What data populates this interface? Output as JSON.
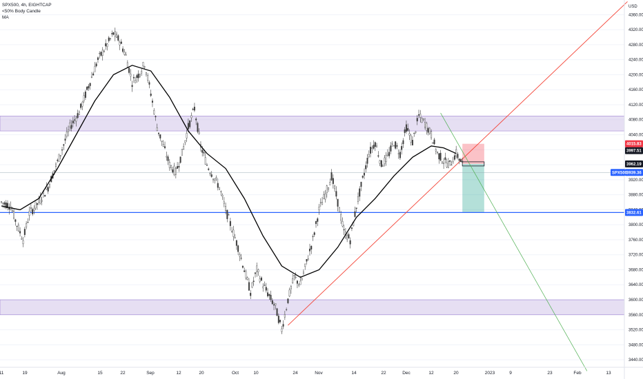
{
  "legend": {
    "symbol": "SPX500, 4h, EIGHTCAP",
    "indicator1": "&lt;50% Body Candle",
    "indicator2": "MA"
  },
  "currency": "USD",
  "chart_data": {
    "type": "candlestick",
    "symbol": "SPX500",
    "timeframe": "4h",
    "yaxis_ticks": [
      4360,
      4320,
      4280,
      4240,
      4200,
      4160,
      4120,
      4080,
      4040,
      4000,
      3960,
      3920,
      3880,
      3840,
      3800,
      3760,
      3720,
      3680,
      3640,
      3600,
      3560,
      3520,
      3480,
      3440
    ],
    "xaxis_ticks": [
      "11",
      "19",
      "Aug",
      "15",
      "22",
      "Sep",
      "12",
      "20",
      "Oct",
      "10",
      "24",
      "Nov",
      "14",
      "22",
      "Dec",
      "12",
      "20",
      "2023",
      "9",
      "23",
      "Feb",
      "13"
    ],
    "ylim": [
      3420,
      4390
    ],
    "price_path": [
      [
        0,
        3860
      ],
      [
        3,
        3850
      ],
      [
        5,
        3800
      ],
      [
        7,
        3760
      ],
      [
        9,
        3830
      ],
      [
        12,
        3860
      ],
      [
        15,
        3900
      ],
      [
        19,
        3990
      ],
      [
        22,
        4060
      ],
      [
        25,
        4100
      ],
      [
        28,
        4170
      ],
      [
        31,
        4240
      ],
      [
        34,
        4280
      ],
      [
        36,
        4310
      ],
      [
        38,
        4290
      ],
      [
        40,
        4250
      ],
      [
        42,
        4180
      ],
      [
        44,
        4200
      ],
      [
        46,
        4230
      ],
      [
        48,
        4150
      ],
      [
        50,
        4060
      ],
      [
        52,
        4010
      ],
      [
        54,
        3960
      ],
      [
        56,
        3940
      ],
      [
        58,
        3990
      ],
      [
        60,
        4060
      ],
      [
        62,
        4110
      ],
      [
        64,
        4010
      ],
      [
        66,
        3960
      ],
      [
        68,
        3930
      ],
      [
        70,
        3900
      ],
      [
        72,
        3840
      ],
      [
        74,
        3790
      ],
      [
        76,
        3740
      ],
      [
        78,
        3680
      ],
      [
        80,
        3620
      ],
      [
        82,
        3680
      ],
      [
        84,
        3640
      ],
      [
        86,
        3610
      ],
      [
        88,
        3580
      ],
      [
        90,
        3520
      ],
      [
        92,
        3600
      ],
      [
        94,
        3660
      ],
      [
        96,
        3640
      ],
      [
        98,
        3700
      ],
      [
        100,
        3760
      ],
      [
        102,
        3840
      ],
      [
        104,
        3880
      ],
      [
        106,
        3930
      ],
      [
        108,
        3860
      ],
      [
        110,
        3780
      ],
      [
        112,
        3760
      ],
      [
        114,
        3850
      ],
      [
        116,
        3920
      ],
      [
        118,
        3990
      ],
      [
        120,
        4020
      ],
      [
        122,
        3960
      ],
      [
        124,
        3980
      ],
      [
        126,
        4020
      ],
      [
        128,
        3990
      ],
      [
        130,
        4060
      ],
      [
        132,
        4020
      ],
      [
        134,
        4090
      ],
      [
        136,
        4070
      ],
      [
        138,
        4040
      ],
      [
        140,
        3990
      ],
      [
        142,
        3970
      ],
      [
        144,
        3960
      ],
      [
        146,
        3990
      ],
      [
        148,
        3962
      ]
    ],
    "moving_average": [
      [
        0,
        3850
      ],
      [
        6,
        3840
      ],
      [
        12,
        3870
      ],
      [
        18,
        3950
      ],
      [
        24,
        4040
      ],
      [
        30,
        4130
      ],
      [
        36,
        4200
      ],
      [
        42,
        4225
      ],
      [
        48,
        4210
      ],
      [
        54,
        4140
      ],
      [
        60,
        4050
      ],
      [
        66,
        3990
      ],
      [
        72,
        3950
      ],
      [
        78,
        3870
      ],
      [
        84,
        3770
      ],
      [
        90,
        3690
      ],
      [
        96,
        3660
      ],
      [
        102,
        3680
      ],
      [
        108,
        3740
      ],
      [
        114,
        3820
      ],
      [
        120,
        3870
      ],
      [
        126,
        3930
      ],
      [
        132,
        3980
      ],
      [
        138,
        4010
      ],
      [
        142,
        4005
      ],
      [
        146,
        3990
      ]
    ],
    "zones": [
      {
        "name": "resistance-zone",
        "from": 4050,
        "to": 4090,
        "color": "#d1c4e9"
      },
      {
        "name": "support-zone",
        "from": 3560,
        "to": 3600,
        "color": "#d1c4e9"
      }
    ],
    "lines": [
      {
        "name": "support-level-line",
        "price": 3832.61,
        "color": "#2962ff"
      },
      {
        "name": "current-price-line",
        "price": 3939.36,
        "color": "#90a4ae"
      }
    ],
    "trendline": {
      "from": [
        92,
        3532
      ],
      "to": [
        201,
        4395
      ],
      "color": "#f44336"
    },
    "projection": {
      "from": [
        141,
        4098
      ],
      "to": [
        188,
        3410
      ],
      "color": "#4caf50"
    },
    "position": {
      "entry": 3962.19,
      "stop": 4015.83,
      "target": 3832.61,
      "start_index": 148,
      "end_index": 155
    },
    "price_tags": [
      {
        "label": "4015.83",
        "price": 4015.83,
        "bg": "#f23645",
        "fg": "#ffffff"
      },
      {
        "label": "3997.51",
        "price": 3997.51,
        "bg": "#131722",
        "fg": "#ffffff"
      },
      {
        "label": "3962.19",
        "price": 3962.19,
        "bg": "#131722",
        "fg": "#ffffff"
      },
      {
        "label": "3939.36",
        "price": 3939.36,
        "bg": "#2962ff",
        "fg": "#ffffff",
        "name_label": "SPX500"
      },
      {
        "label": "3832.61",
        "price": 3832.61,
        "bg": "#2962ff",
        "fg": "#ffffff"
      }
    ]
  },
  "colors": {
    "candle_up": "#4a4a4a",
    "candle_down": "#4a4a4a",
    "ma": "#000000",
    "grid": "#f0f3fa",
    "border": "#e0e3eb"
  }
}
